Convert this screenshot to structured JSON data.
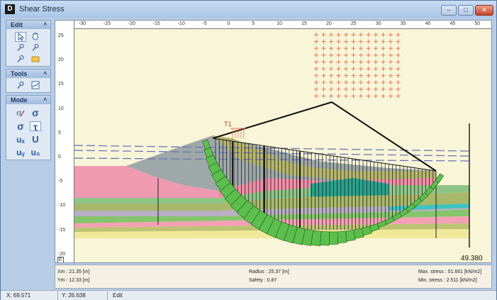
{
  "window": {
    "title": "Shear Stress",
    "app_icon": "D",
    "buttons": {
      "minimize": "–",
      "maximize": "□",
      "close": "✕"
    }
  },
  "panel": {
    "edit_header": "Edit",
    "tools_header": "Tools",
    "mode_header": "Mode",
    "collapse_glyph": "˄",
    "edit_tools": [
      "pointer-icon",
      "hand-icon",
      "probe-icon",
      "probe-icon",
      "probe-icon",
      "rectangle-icon"
    ],
    "tools_tools": [
      "probe-icon",
      "chart-icon"
    ],
    "mode_tools": [
      "sigma-pencil-icon",
      "sigma-icon",
      "sigma-icon",
      "tau-icon",
      "ux-icon",
      "u-icon",
      "uy-icon",
      "u0-icon"
    ],
    "mode_labels": {
      "sigma_pen": "σ",
      "sigma": "σ",
      "sigma2": "σ",
      "tau": "τ",
      "ux": "uₓ",
      "u": "U",
      "uy": "uᵧ",
      "u0": "u₀"
    }
  },
  "canvas": {
    "x_ticks": [
      "-30",
      "-25",
      "-20",
      "-15",
      "-10",
      "-5",
      "0",
      "5",
      "10",
      "15",
      "20",
      "25",
      "30",
      "35",
      "40",
      "45",
      "50"
    ],
    "y_ticks": [
      "25",
      "20",
      "15",
      "10",
      "5",
      "0",
      "-5",
      "-10",
      "-15",
      "-20"
    ],
    "corner_label": "E",
    "label_t1": "T1",
    "value_label": "49.380",
    "colors": {
      "background": "#f9f5d8",
      "slip_mass": "#5cbf4d",
      "arrows": "#e8785a",
      "line": "#111111",
      "dash": "#6b74b8"
    }
  },
  "results": {
    "xm": "Xm : 21.35 [m]",
    "ym": "Ym : 12.33 [m]",
    "radius": "Radius : 25.37 [m]",
    "safety": "Safety : 0.87",
    "max_stress": "Max. stress : 51.661 [kN/m2]",
    "min_stress": "Min. stress : 2.511 [kN/m2]"
  },
  "statusbar": {
    "x": "X: 69.571",
    "y": "Y: 26.638",
    "mode": "Edit"
  }
}
